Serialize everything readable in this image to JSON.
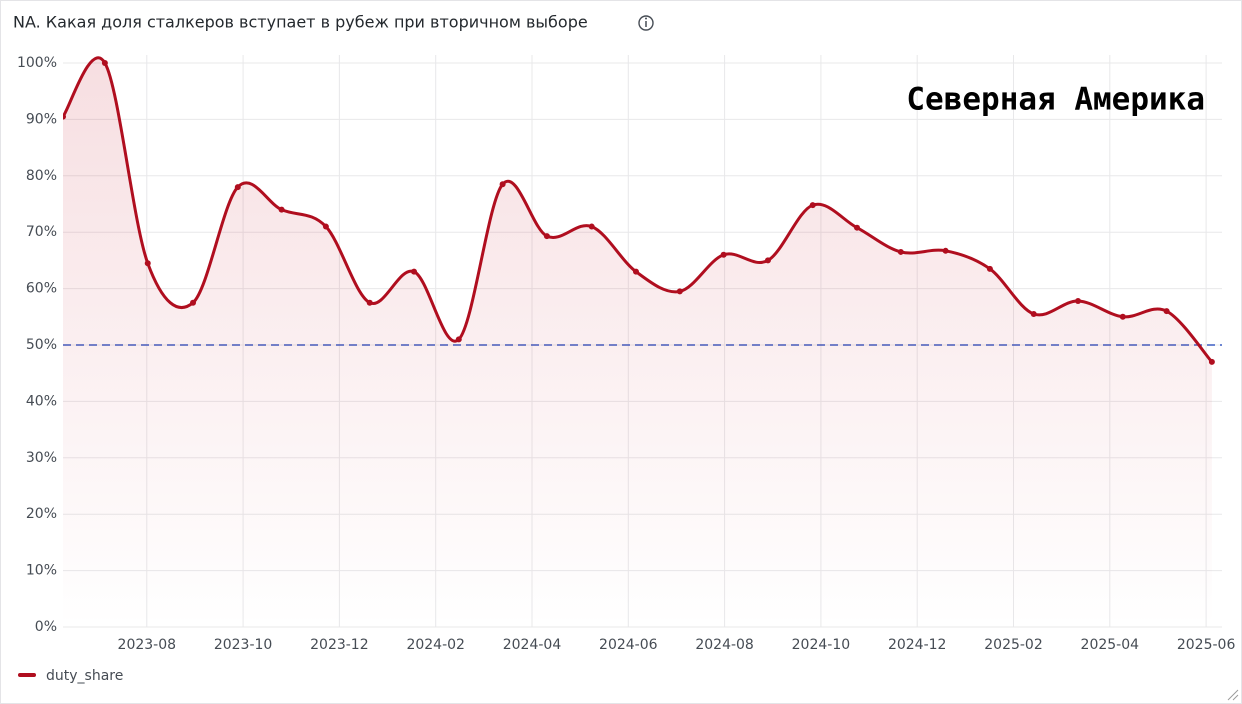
{
  "chart_data": {
    "type": "line",
    "title": "NA. Какая доля сталкеров вступает в рубеж при вторичном выборе",
    "annotation": "Северная Америка",
    "x": [
      5.26,
      6.13,
      7.02,
      7.96,
      8.89,
      9.8,
      10.72,
      11.63,
      12.55,
      13.48,
      14.39,
      15.31,
      16.24,
      17.16,
      18.07,
      18.98,
      19.9,
      20.83,
      21.75,
      22.66,
      23.59,
      24.51,
      25.42,
      26.34,
      27.27,
      28.18,
      29.12
    ],
    "series": [
      {
        "name": "duty_share",
        "color": "#b00e1f",
        "values": [
          90.5,
          100,
          64.5,
          57.5,
          78,
          74,
          71,
          57.5,
          63,
          51,
          78.5,
          69.3,
          71,
          63,
          59.5,
          66,
          65,
          74.8,
          70.8,
          66.5,
          66.7,
          63.5,
          55.5,
          57.8,
          55,
          56,
          47
        ]
      }
    ],
    "threshold": 50,
    "threshold_color": "#3d5fc4",
    "xlim": [
      5.26,
      29.33
    ],
    "xticks": [
      {
        "value": 7,
        "label": "2023-08"
      },
      {
        "value": 9,
        "label": "2023-10"
      },
      {
        "value": 11,
        "label": "2023-12"
      },
      {
        "value": 13,
        "label": "2024-02"
      },
      {
        "value": 15,
        "label": "2024-04"
      },
      {
        "value": 17,
        "label": "2024-06"
      },
      {
        "value": 19,
        "label": "2024-08"
      },
      {
        "value": 21,
        "label": "2024-10"
      },
      {
        "value": 23,
        "label": "2024-12"
      },
      {
        "value": 25,
        "label": "2025-02"
      },
      {
        "value": 27,
        "label": "2025-04"
      },
      {
        "value": 29,
        "label": "2025-06"
      }
    ],
    "ylim": [
      0,
      100
    ],
    "yticks": [
      {
        "value": 0,
        "label": "0%"
      },
      {
        "value": 10,
        "label": "10%"
      },
      {
        "value": 20,
        "label": "20%"
      },
      {
        "value": 30,
        "label": "30%"
      },
      {
        "value": 40,
        "label": "40%"
      },
      {
        "value": 50,
        "label": "50%"
      },
      {
        "value": 60,
        "label": "60%"
      },
      {
        "value": 70,
        "label": "70%"
      },
      {
        "value": 80,
        "label": "80%"
      },
      {
        "value": 90,
        "label": "90%"
      },
      {
        "value": 100,
        "label": "100%"
      }
    ],
    "grid": true
  }
}
